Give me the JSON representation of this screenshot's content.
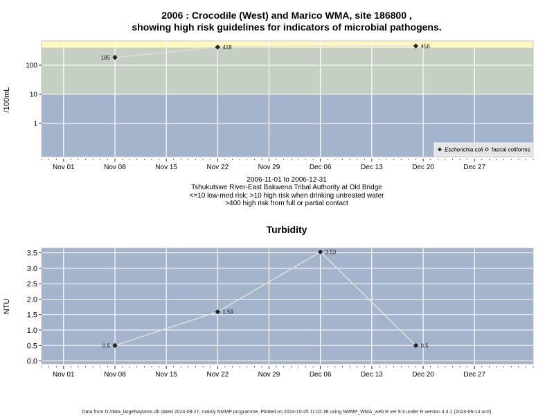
{
  "colors": {
    "background": "#ffffff",
    "band_low": "#a3b4cc",
    "band_mid": "#c5cfc4",
    "band_high": "#fdf8c0",
    "turbidity_bg": "#a3b4cc",
    "grid": "#ffffff",
    "series_line": "#dddddd",
    "marker": "#222222"
  },
  "footer": "Data from D:/data_large/wq/wms.db dated 2024-08-27, mainly NMMP programme. Plotted on 2024-10-25 11:02:36 using NMMP_WMA_web.R ver 9.3 under R version 4.4.1 (2024-06-14 ucrt)",
  "chart_data": [
    {
      "type": "scatter",
      "title_line1": "2006 : Crocodile (West) and Marico WMA, site 186800 ,",
      "title_line2": "showing high risk guidelines for indicators of microbial pathogens.",
      "ylabel": "/100mL",
      "y_scale": "log",
      "y_ticks": [
        {
          "value": 1,
          "label": "1"
        },
        {
          "value": 10,
          "label": "10"
        },
        {
          "value": 100,
          "label": "100"
        }
      ],
      "x_ticks": [
        "Nov 01",
        "Nov 08",
        "Nov 15",
        "Nov 22",
        "Nov 29",
        "Dec 06",
        "Dec 13",
        "Dec 20",
        "Dec 27"
      ],
      "x_tick_dates": [
        "2006-11-01",
        "2006-11-08",
        "2006-11-15",
        "2006-11-22",
        "2006-11-29",
        "2006-12-06",
        "2006-12-13",
        "2006-12-20",
        "2006-12-27"
      ],
      "xlim": [
        "2006-10-29",
        "2007-01-04"
      ],
      "bands": [
        {
          "from": 0.0,
          "to": 10,
          "name": "low-med"
        },
        {
          "from": 10,
          "to": 400,
          "name": "drinking"
        },
        {
          "from": 400,
          "to": 560,
          "name": "contact"
        }
      ],
      "series": [
        {
          "name": "Escherichia coli",
          "marker": "filled-diamond",
          "x": [
            "2006-11-08",
            "2006-11-22",
            "2006-12-19"
          ],
          "values": [
            185,
            418,
            456
          ],
          "labels": [
            "185",
            "418",
            "456"
          ]
        },
        {
          "name": "faecal coliforms",
          "marker": "open-diamond",
          "x": [],
          "values": [],
          "labels": []
        }
      ],
      "legend_position": "bottom-right",
      "subtitle_lines": [
        "2006-11-01 to 2006-12-31",
        "Tshukutswe River-East Bakwena Tribal Authority at Old Bridge",
        "<=10 low-med risk; >10 high risk when drinking untreated water",
        ">400 high risk from full or partial contact"
      ]
    },
    {
      "type": "line",
      "title": "Turbidity",
      "ylabel": "NTU",
      "ylim": [
        -0.1,
        3.65
      ],
      "y_ticks": [
        "0.0",
        "0.5",
        "1.0",
        "1.5",
        "2.0",
        "2.5",
        "3.0",
        "3.5"
      ],
      "x_ticks": [
        "Nov 01",
        "Nov 08",
        "Nov 15",
        "Nov 22",
        "Nov 29",
        "Dec 06",
        "Dec 13",
        "Dec 20",
        "Dec 27"
      ],
      "x_tick_dates": [
        "2006-11-01",
        "2006-11-08",
        "2006-11-15",
        "2006-11-22",
        "2006-11-29",
        "2006-12-06",
        "2006-12-13",
        "2006-12-20",
        "2006-12-27"
      ],
      "xlim": [
        "2006-10-29",
        "2007-01-04"
      ],
      "series": [
        {
          "name": "",
          "x": [
            "2006-11-08",
            "2006-11-22",
            "2006-12-06",
            "2006-12-19"
          ],
          "values": [
            0.5,
            1.59,
            3.53,
            0.5
          ],
          "labels": [
            "0.5",
            "1.59",
            "3.53",
            "0.5"
          ]
        }
      ]
    }
  ]
}
